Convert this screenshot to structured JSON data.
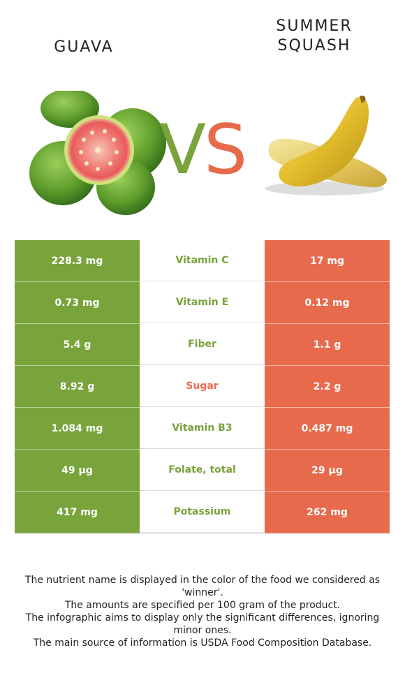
{
  "left_food": {
    "name": "GUAVA",
    "color": "#79a33b",
    "image": "guava-image"
  },
  "right_food": {
    "name": "SUMMER SQUASH",
    "color": "#e76a4c",
    "image": "summer-squash-image"
  },
  "vs": {
    "v": "V",
    "s": "S"
  },
  "nutrients": [
    {
      "name": "Vitamin C",
      "left": "228.3 mg",
      "right": "17 mg",
      "winner": "left"
    },
    {
      "name": "Vitamin E",
      "left": "0.73 mg",
      "right": "0.12 mg",
      "winner": "left"
    },
    {
      "name": "Fiber",
      "left": "5.4 g",
      "right": "1.1 g",
      "winner": "left"
    },
    {
      "name": "Sugar",
      "left": "8.92 g",
      "right": "2.2 g",
      "winner": "right"
    },
    {
      "name": "Vitamin B3",
      "left": "1.084 mg",
      "right": "0.487 mg",
      "winner": "left"
    },
    {
      "name": "Folate, total",
      "left": "49 µg",
      "right": "29 µg",
      "winner": "left"
    },
    {
      "name": "Potassium",
      "left": "417 mg",
      "right": "262 mg",
      "winner": "left"
    }
  ],
  "footer": [
    "The nutrient name is displayed in the color of the food we considered as 'winner'.",
    "The amounts are specified per 100 gram of the product.",
    "The infographic aims to display only the significant differences, ignoring minor ones.",
    "The main source of information is USDA Food Composition Database."
  ]
}
